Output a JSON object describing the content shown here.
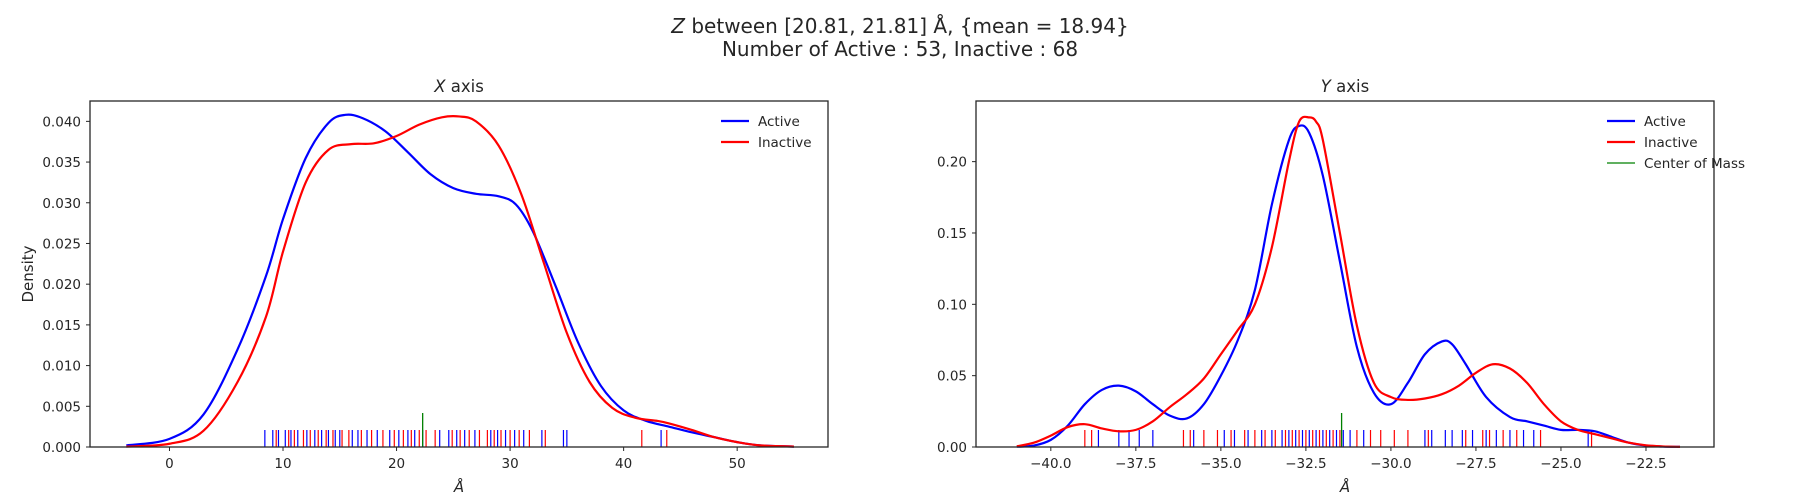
{
  "figure": {
    "title_line1_var": "Z",
    "title_line1_rest": " between [20.81, 21.81] Å, {mean = 18.94}",
    "title_line2": "Number of Active : 53, Inactive : 68"
  },
  "colors": {
    "active": "#0000ff",
    "inactive": "#ff0000",
    "center": "#008000",
    "axes": "#262626"
  },
  "chart_data": [
    {
      "type": "line",
      "title_var": "X",
      "title_rest": " axis",
      "xlabel": "Å",
      "ylabel": "Density",
      "xlim": [
        -7,
        58
      ],
      "ylim": [
        0,
        0.0425
      ],
      "xticks": [
        0,
        10,
        20,
        30,
        40,
        50
      ],
      "xtick_labels": [
        "0",
        "10",
        "20",
        "30",
        "40",
        "50"
      ],
      "yticks": [
        0,
        0.005,
        0.01,
        0.015,
        0.02,
        0.025,
        0.03,
        0.035,
        0.04
      ],
      "ytick_labels": [
        "0.000",
        "0.005",
        "0.010",
        "0.015",
        "0.020",
        "0.025",
        "0.030",
        "0.035",
        "0.040"
      ],
      "grid": false,
      "legend_position": "top-right",
      "series": [
        {
          "name": "Active",
          "color": "#0000ff",
          "x": [
            -3.8,
            0,
            3,
            6,
            8.5,
            10,
            12,
            14,
            15.5,
            17,
            19,
            21,
            23,
            25,
            27,
            29,
            30.5,
            32,
            34,
            36,
            38,
            40,
            42,
            44,
            46,
            48,
            50,
            52,
            55
          ],
          "y": [
            0.0002,
            0.001,
            0.004,
            0.012,
            0.021,
            0.028,
            0.0355,
            0.0398,
            0.0408,
            0.0404,
            0.0388,
            0.0362,
            0.0335,
            0.0318,
            0.0311,
            0.0308,
            0.0298,
            0.0265,
            0.0198,
            0.0128,
            0.0075,
            0.0045,
            0.0032,
            0.0025,
            0.0018,
            0.0012,
            0.0006,
            0.0002,
            5e-05
          ]
        },
        {
          "name": "Inactive",
          "color": "#ff0000",
          "x": [
            -3.8,
            0,
            3,
            6,
            8.5,
            10,
            12,
            14,
            16,
            18,
            20,
            22,
            24,
            25.5,
            27,
            29,
            31,
            33,
            35,
            37,
            39,
            41,
            43,
            44,
            46,
            48,
            50,
            52,
            55
          ],
          "y": [
            5e-05,
            0.0004,
            0.002,
            0.008,
            0.016,
            0.024,
            0.0325,
            0.0365,
            0.0372,
            0.0373,
            0.0382,
            0.0396,
            0.0405,
            0.0406,
            0.04,
            0.037,
            0.031,
            0.0225,
            0.014,
            0.008,
            0.0048,
            0.0036,
            0.0032,
            0.0029,
            0.0021,
            0.0012,
            0.0006,
            0.0002,
            5e-05
          ]
        }
      ],
      "rug": {
        "active": [
          8.4,
          9.1,
          9.6,
          10.2,
          10.7,
          11.3,
          12.1,
          12.8,
          13.4,
          14.0,
          14.6,
          15.0,
          16.1,
          16.6,
          17.4,
          18.3,
          19.4,
          20.2,
          21.0,
          21.6,
          22.3,
          23.8,
          24.6,
          25.3,
          26.0,
          26.9,
          28.3,
          28.9,
          29.6,
          30.4,
          31.2,
          32.8,
          34.7,
          35.0,
          43.3
        ],
        "inactive": [
          9.4,
          10.5,
          11.0,
          11.8,
          12.4,
          13.1,
          13.8,
          14.4,
          15.2,
          15.8,
          16.9,
          17.8,
          18.8,
          19.8,
          20.6,
          21.3,
          22.0,
          22.6,
          23.4,
          24.9,
          25.6,
          26.4,
          27.3,
          28.0,
          28.6,
          29.2,
          30.0,
          30.8,
          31.7,
          33.1,
          41.6,
          43.8
        ]
      },
      "center_of_mass": 22.3
    },
    {
      "type": "line",
      "title_var": "Y",
      "title_rest": " axis",
      "xlabel": "Å",
      "ylabel": "",
      "xlim": [
        -42.2,
        -20.5
      ],
      "ylim": [
        0,
        0.2425
      ],
      "xticks": [
        -40,
        -37.5,
        -35,
        -32.5,
        -30,
        -27.5,
        -25,
        -22.5
      ],
      "xtick_labels": [
        "−40.0",
        "−37.5",
        "−35.0",
        "−32.5",
        "−30.0",
        "−27.5",
        "−25.0",
        "−22.5"
      ],
      "yticks": [
        0,
        0.05,
        0.1,
        0.15,
        0.2
      ],
      "ytick_labels": [
        "0.00",
        "0.05",
        "0.10",
        "0.15",
        "0.20"
      ],
      "grid": false,
      "legend_position": "top-right",
      "series": [
        {
          "name": "Active",
          "color": "#0000ff",
          "x": [
            -41,
            -40.5,
            -40,
            -39.5,
            -39,
            -38.5,
            -38,
            -37.5,
            -37,
            -36.5,
            -36,
            -35.5,
            -35,
            -34.5,
            -34,
            -33.5,
            -33,
            -32.7,
            -32.4,
            -32,
            -31.5,
            -31,
            -30.5,
            -30,
            -29.5,
            -29,
            -28.5,
            -28.2,
            -27.8,
            -27.2,
            -26.5,
            -26,
            -25.5,
            -25,
            -24.5,
            -24,
            -23.5,
            -23,
            -22.5,
            -22,
            -21.5
          ],
          "y": [
            0.0002,
            0.001,
            0.005,
            0.015,
            0.03,
            0.04,
            0.043,
            0.039,
            0.03,
            0.022,
            0.02,
            0.03,
            0.05,
            0.075,
            0.11,
            0.17,
            0.215,
            0.225,
            0.22,
            0.19,
            0.13,
            0.07,
            0.038,
            0.03,
            0.045,
            0.065,
            0.074,
            0.072,
            0.058,
            0.035,
            0.021,
            0.018,
            0.015,
            0.012,
            0.012,
            0.011,
            0.007,
            0.003,
            0.001,
            0.0003,
            0.0001
          ]
        },
        {
          "name": "Inactive",
          "color": "#ff0000",
          "x": [
            -41,
            -40.5,
            -40,
            -39.5,
            -39,
            -38.5,
            -38,
            -37.5,
            -37,
            -36.5,
            -36,
            -35.5,
            -35,
            -34.5,
            -34,
            -33.5,
            -33,
            -32.7,
            -32.4,
            -32.2,
            -32,
            -31.5,
            -31,
            -30.5,
            -30,
            -29.5,
            -29,
            -28.5,
            -28,
            -27.5,
            -27,
            -26.5,
            -26,
            -25.5,
            -25,
            -24.5,
            -24,
            -23.5,
            -23,
            -22.5,
            -22,
            -21.5
          ],
          "y": [
            0.0005,
            0.003,
            0.008,
            0.014,
            0.016,
            0.013,
            0.011,
            0.012,
            0.018,
            0.028,
            0.037,
            0.048,
            0.065,
            0.082,
            0.1,
            0.14,
            0.2,
            0.228,
            0.231,
            0.228,
            0.215,
            0.15,
            0.085,
            0.045,
            0.035,
            0.033,
            0.034,
            0.037,
            0.043,
            0.052,
            0.058,
            0.055,
            0.045,
            0.03,
            0.018,
            0.012,
            0.009,
            0.006,
            0.003,
            0.0012,
            0.0004,
            0.0001
          ]
        }
      ],
      "rug": {
        "active": [
          -38.6,
          -38.0,
          -37.7,
          -37.4,
          -37.0,
          -35.8,
          -34.9,
          -34.6,
          -34.2,
          -33.8,
          -33.5,
          -33.2,
          -33.0,
          -32.8,
          -32.6,
          -32.4,
          -32.2,
          -32.0,
          -31.8,
          -31.6,
          -31.4,
          -31.2,
          -30.8,
          -29.0,
          -28.8,
          -28.4,
          -28.2,
          -27.9,
          -27.6,
          -27.2,
          -26.9,
          -26.5,
          -26.1,
          -25.8,
          -24.2
        ],
        "inactive": [
          -39.0,
          -38.8,
          -36.1,
          -35.9,
          -35.5,
          -35.1,
          -34.7,
          -34.3,
          -34.0,
          -33.7,
          -33.4,
          -33.1,
          -32.9,
          -32.7,
          -32.5,
          -32.3,
          -32.1,
          -31.9,
          -31.7,
          -31.5,
          -31.0,
          -30.6,
          -30.3,
          -29.9,
          -29.5,
          -28.9,
          -27.8,
          -27.3,
          -27.1,
          -26.7,
          -26.3,
          -25.6,
          -24.1
        ]
      },
      "center_of_mass": -31.45
    }
  ],
  "legend_center_label": "Center of Mass"
}
